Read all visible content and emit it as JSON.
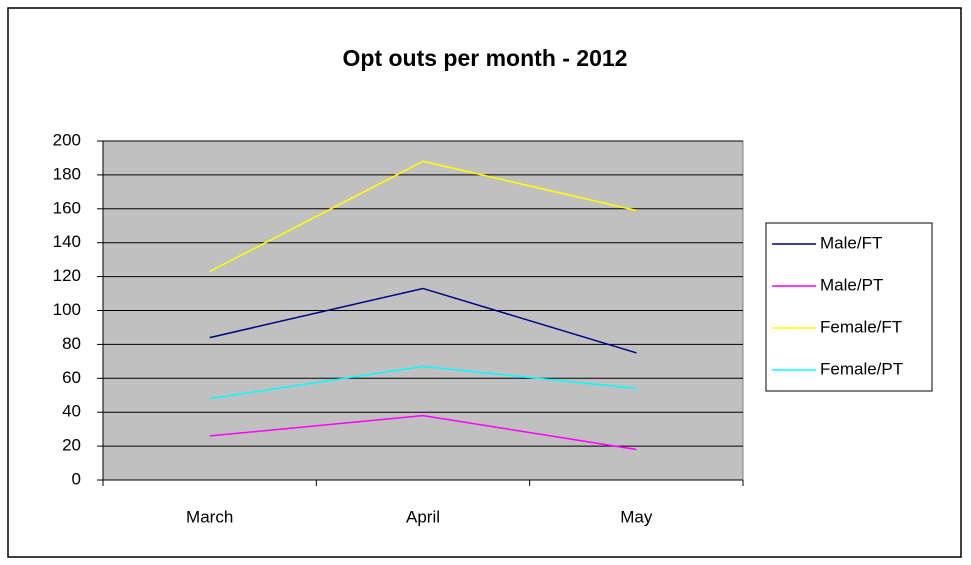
{
  "chart_data": {
    "type": "line",
    "title": "Opt outs per month - 2012",
    "categories": [
      "March",
      "April",
      "May"
    ],
    "series": [
      {
        "name": "Male/FT",
        "color": "#000080",
        "values": [
          84,
          113,
          75
        ]
      },
      {
        "name": "Male/PT",
        "color": "#ff00ff",
        "values": [
          26,
          38,
          18
        ]
      },
      {
        "name": "Female/FT",
        "color": "#ffff00",
        "values": [
          123,
          188,
          159
        ]
      },
      {
        "name": "Female/PT",
        "color": "#00ffff",
        "values": [
          48,
          67,
          54
        ]
      }
    ],
    "ylim": [
      0,
      200
    ],
    "yticks": [
      0,
      20,
      40,
      60,
      80,
      100,
      120,
      140,
      160,
      180,
      200
    ],
    "grid": true,
    "legend": "right"
  }
}
